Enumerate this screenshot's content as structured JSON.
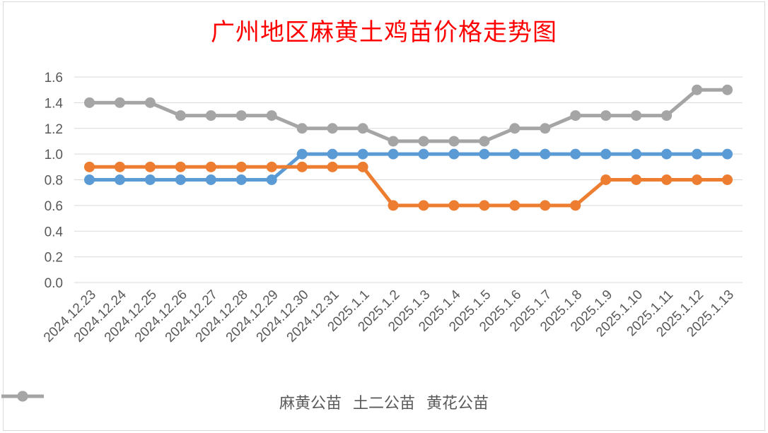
{
  "chart_data": {
    "type": "line",
    "title": "广州地区麻黄土鸡苗价格走势图",
    "categories": [
      "2024.12.23",
      "2024.12.24",
      "2024.12.25",
      "2024.12.26",
      "2024.12.27",
      "2024.12.28",
      "2024.12.29",
      "2024.12.30",
      "2024.12.31",
      "2025.1.1",
      "2025.1.2",
      "2025.1.3",
      "2025.1.4",
      "2025.1.5",
      "2025.1.6",
      "2025.1.7",
      "2025.1.8",
      "2025.1.9",
      "2025.1.10",
      "2025.1.11",
      "2025.1.12",
      "2025.1.13"
    ],
    "y_ticks": [
      "0.0",
      "0.2",
      "0.4",
      "0.6",
      "0.8",
      "1.0",
      "1.2",
      "1.4",
      "1.6"
    ],
    "ylim": [
      0,
      1.6
    ],
    "grid": true,
    "legend_position": "bottom",
    "series": [
      {
        "name": "麻黄公苗",
        "color": "#5b9bd5",
        "values": [
          0.8,
          0.8,
          0.8,
          0.8,
          0.8,
          0.8,
          0.8,
          1.0,
          1.0,
          1.0,
          1.0,
          1.0,
          1.0,
          1.0,
          1.0,
          1.0,
          1.0,
          1.0,
          1.0,
          1.0,
          1.0,
          1.0
        ]
      },
      {
        "name": "土二公苗",
        "color": "#ed7d31",
        "values": [
          0.9,
          0.9,
          0.9,
          0.9,
          0.9,
          0.9,
          0.9,
          0.9,
          0.9,
          0.9,
          0.6,
          0.6,
          0.6,
          0.6,
          0.6,
          0.6,
          0.6,
          0.8,
          0.8,
          0.8,
          0.8,
          0.8
        ]
      },
      {
        "name": "黄花公苗",
        "color": "#a5a5a5",
        "values": [
          1.4,
          1.4,
          1.4,
          1.3,
          1.3,
          1.3,
          1.3,
          1.2,
          1.2,
          1.2,
          1.1,
          1.1,
          1.1,
          1.1,
          1.2,
          1.2,
          1.3,
          1.3,
          1.3,
          1.3,
          1.5,
          1.5
        ]
      }
    ]
  }
}
